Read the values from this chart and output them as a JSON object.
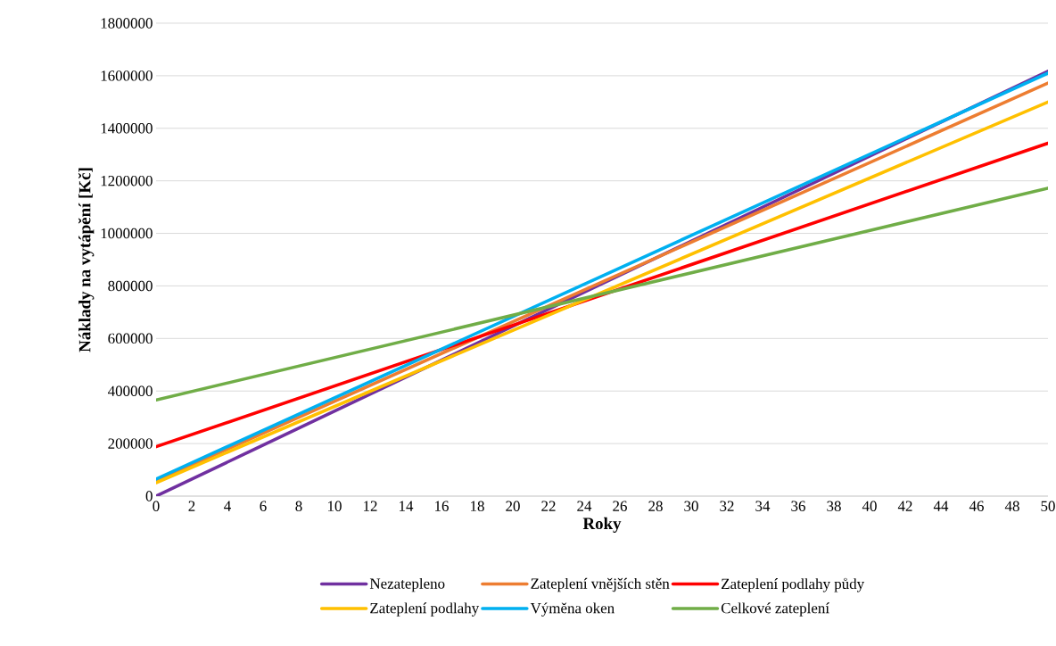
{
  "chart_data": {
    "type": "line",
    "xlabel": "Roky",
    "ylabel": "Náklady na vytápění [Kč]",
    "x": [
      0,
      50
    ],
    "xlim": [
      0,
      50
    ],
    "xticks": [
      0,
      2,
      4,
      6,
      8,
      10,
      12,
      14,
      16,
      18,
      20,
      22,
      24,
      26,
      28,
      30,
      32,
      34,
      36,
      38,
      40,
      42,
      44,
      46,
      48,
      50
    ],
    "ylim": [
      0,
      1800000
    ],
    "yticks": [
      0,
      200000,
      400000,
      600000,
      800000,
      1000000,
      1200000,
      1400000,
      1600000,
      1800000
    ],
    "grid": "y",
    "legend": "bottom",
    "marker": "none",
    "line_style": "solid",
    "series": [
      {
        "name": "Nezatepleno",
        "color": "#7030a0",
        "values": [
          0,
          1617000
        ]
      },
      {
        "name": "Zateplení vnějších stěn",
        "color": "#ed7d31",
        "values": [
          58000,
          1572000
        ]
      },
      {
        "name": "Zateplení podlahy půdy",
        "color": "#ff0000",
        "values": [
          188000,
          1343000
        ]
      },
      {
        "name": "Zateplení podlahy",
        "color": "#ffc000",
        "values": [
          51000,
          1500000
        ]
      },
      {
        "name": "Výměna oken",
        "color": "#00b0f0",
        "values": [
          65000,
          1610000
        ]
      },
      {
        "name": "Celkové zateplení",
        "color": "#70ad47",
        "values": [
          366000,
          1172000
        ]
      }
    ]
  }
}
